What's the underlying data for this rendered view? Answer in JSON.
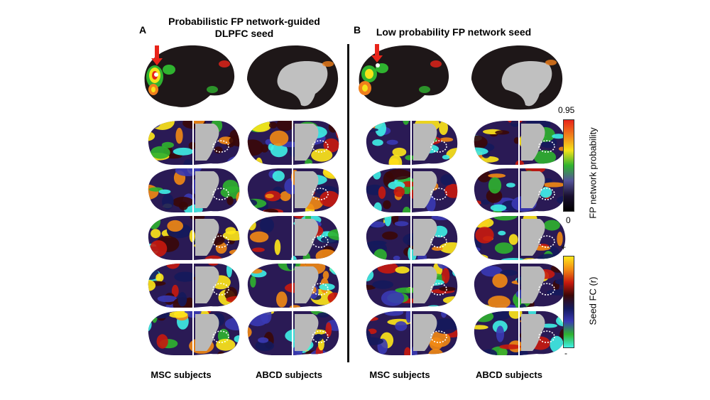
{
  "panels": [
    {
      "letter": "A",
      "title_line1": "Probabilistic FP network-guided",
      "title_line2": "DLPFC seed",
      "columns": [
        "MSC subjects",
        "ABCD subjects"
      ]
    },
    {
      "letter": "B",
      "title_line1": "Low probability FP network seed",
      "title_line2": "",
      "columns": [
        "MSC subjects",
        "ABCD subjects"
      ]
    }
  ],
  "colorbars": {
    "probability": {
      "max_label": "0.95",
      "min_label": "0",
      "axis_label": "FP network probability",
      "colors": [
        "#e8241a",
        "#f07f1c",
        "#f5e21a",
        "#2fb32f",
        "#55549a",
        "#1a1030",
        "#000000"
      ]
    },
    "seed_fc": {
      "max_label": "+",
      "min_label": "-",
      "axis_label": "Seed FC (r)",
      "colors": [
        "#ffe81a",
        "#f28a14",
        "#c81a0e",
        "#3a0808",
        "#141a5c",
        "#3a3ab4",
        "#2fb32f",
        "#3ff0e6"
      ]
    }
  },
  "seed_marker_color": "#e8241a"
}
